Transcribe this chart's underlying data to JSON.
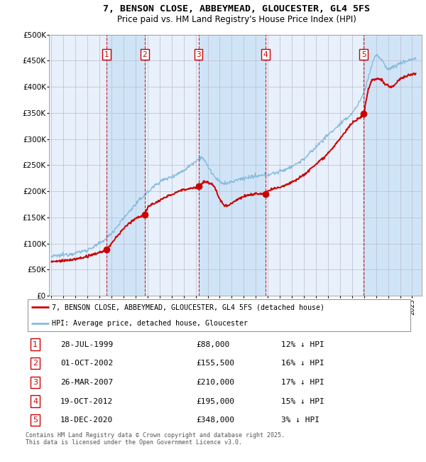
{
  "title": "7, BENSON CLOSE, ABBEYMEAD, GLOUCESTER, GL4 5FS",
  "subtitle": "Price paid vs. HM Land Registry's House Price Index (HPI)",
  "ylim": [
    0,
    500000
  ],
  "yticks": [
    0,
    50000,
    100000,
    150000,
    200000,
    250000,
    300000,
    350000,
    400000,
    450000,
    500000
  ],
  "ytick_labels": [
    "£0",
    "£50K",
    "£100K",
    "£150K",
    "£200K",
    "£250K",
    "£300K",
    "£350K",
    "£400K",
    "£450K",
    "£500K"
  ],
  "xlim_start": 1994.8,
  "xlim_end": 2025.8,
  "background_color": "#ffffff",
  "plot_bg_color": "#e8f0fb",
  "grid_color": "#bbbbcc",
  "sale_color": "#cc0000",
  "hpi_color": "#88bbdd",
  "shade_color": "#d0e4f7",
  "purchases": [
    {
      "label": "1",
      "year": 1999.57,
      "price": 88000,
      "date": "28-JUL-1999",
      "pct": "12%"
    },
    {
      "label": "2",
      "year": 2002.75,
      "price": 155500,
      "date": "01-OCT-2002",
      "pct": "16%"
    },
    {
      "label": "3",
      "year": 2007.23,
      "price": 210000,
      "date": "26-MAR-2007",
      "pct": "17%"
    },
    {
      "label": "4",
      "year": 2012.8,
      "price": 195000,
      "date": "19-OCT-2012",
      "pct": "15%"
    },
    {
      "label": "5",
      "year": 2020.96,
      "price": 348000,
      "date": "18-DEC-2020",
      "pct": "3%"
    }
  ],
  "legend_sale_label": "7, BENSON CLOSE, ABBEYMEAD, GLOUCESTER, GL4 5FS (detached house)",
  "legend_hpi_label": "HPI: Average price, detached house, Gloucester",
  "footnote": "Contains HM Land Registry data © Crown copyright and database right 2025.\nThis data is licensed under the Open Government Licence v3.0."
}
